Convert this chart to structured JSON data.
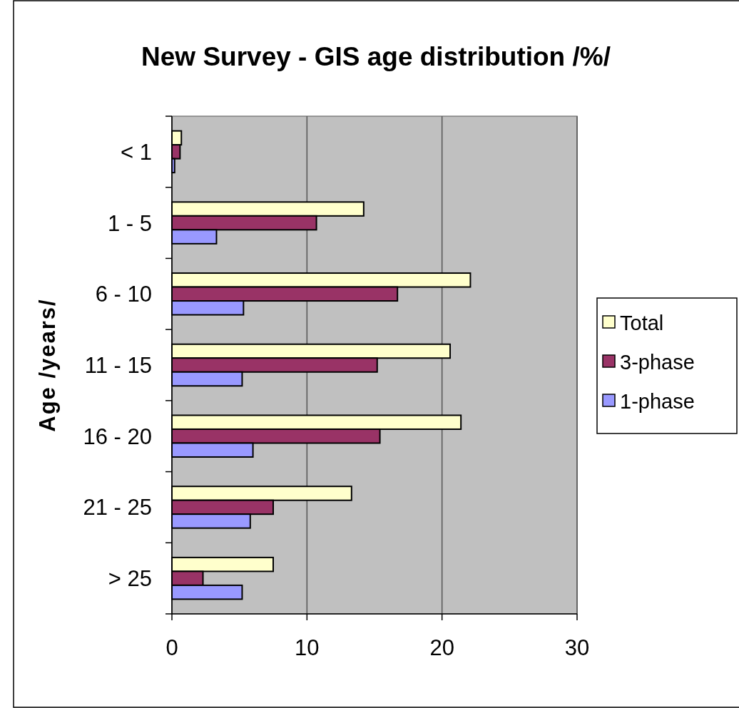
{
  "chart_data": {
    "type": "bar",
    "orientation": "horizontal",
    "title": "New Survey - GIS age distribution /%/",
    "ylabel": "Age /years/",
    "categories": [
      "< 1",
      "1 - 5",
      "6 - 10",
      "11 - 15",
      "16 - 20",
      "21 - 25",
      "> 25"
    ],
    "series": [
      {
        "name": "Total",
        "color": "#ffffcc",
        "values": [
          0.7,
          14.2,
          22.1,
          20.6,
          21.4,
          13.3,
          7.5
        ]
      },
      {
        "name": "3-phase",
        "color": "#993366",
        "values": [
          0.6,
          10.7,
          16.7,
          15.2,
          15.4,
          7.5,
          2.3
        ]
      },
      {
        "name": "1-phase",
        "color": "#9999ff",
        "values": [
          0.2,
          3.3,
          5.3,
          5.2,
          6.0,
          5.8,
          5.2
        ]
      }
    ],
    "xlim": [
      0,
      30
    ],
    "xticks": [
      0,
      10,
      20,
      30
    ],
    "grid": "x",
    "legend": "right"
  }
}
